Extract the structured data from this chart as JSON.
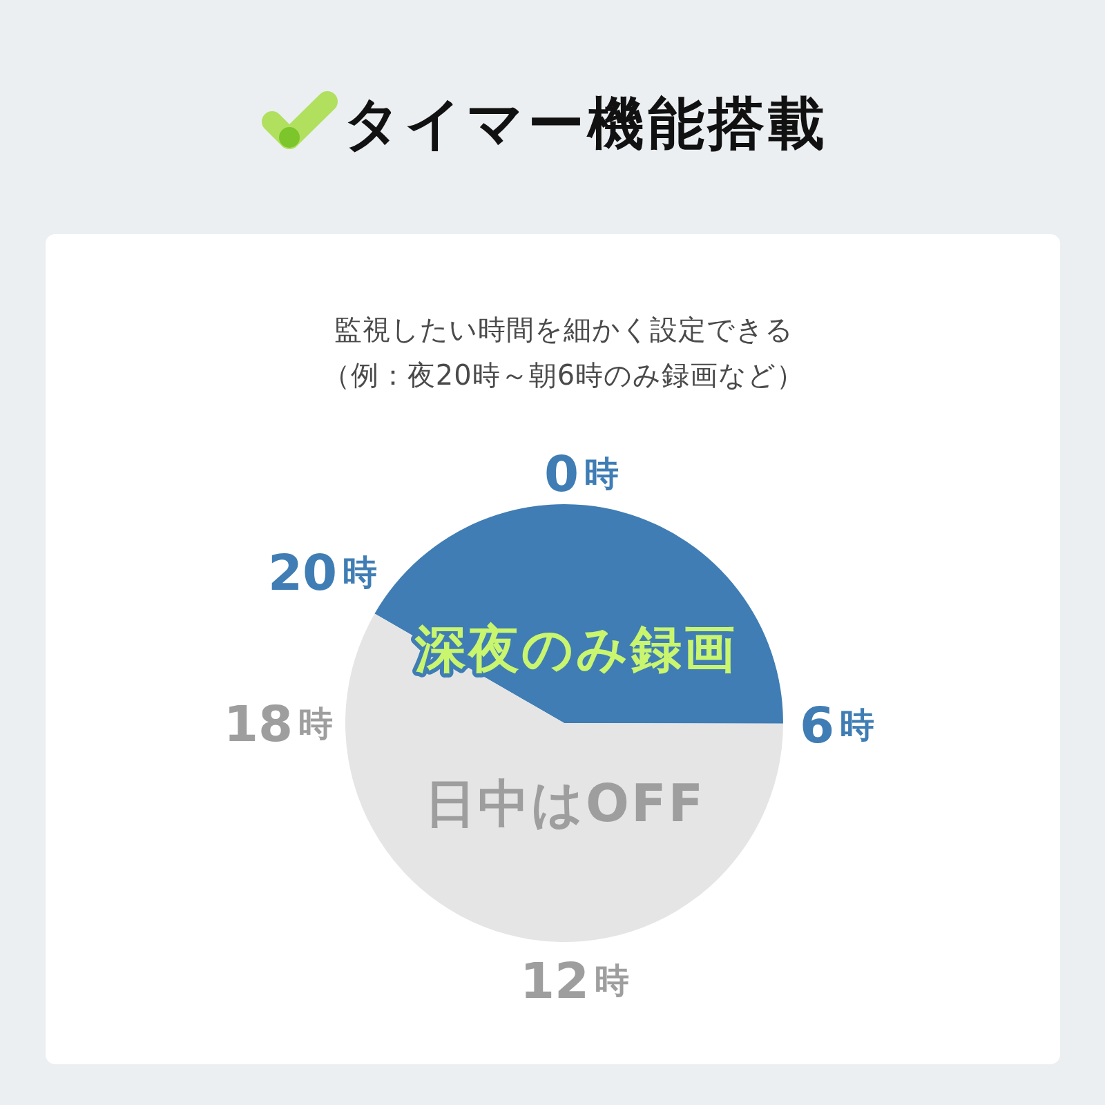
{
  "chart_data": {
    "type": "pie",
    "title": "タイマー機能搭載",
    "subtitle": "監視したい時間を細かく設定できる（例：夜20時～朝6時のみ録画など）",
    "categories": [
      "深夜のみ録画",
      "日中はOFF"
    ],
    "values": [
      41.7,
      58.3
    ],
    "colors": [
      "#3f7db4",
      "#e5e5e5"
    ],
    "annotations": [
      "0時",
      "6時",
      "12時",
      "18時",
      "20時"
    ]
  }
}
